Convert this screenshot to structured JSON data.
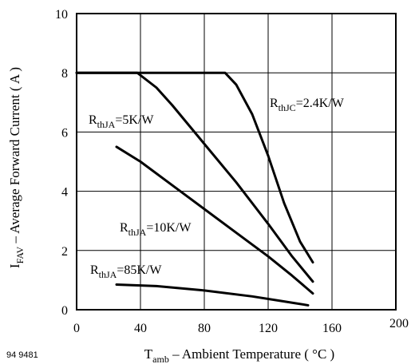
{
  "chart_data": {
    "type": "line",
    "figure_code": "94 9481",
    "xlabel_parts": [
      "T",
      "amb",
      " – Ambient Temperature ( °C )"
    ],
    "ylabel_parts": [
      "I",
      "FAV",
      " – Average Forward Current ( A )"
    ],
    "xlim": [
      0,
      200
    ],
    "ylim": [
      0,
      10
    ],
    "x_ticks": [
      "0",
      "40",
      "80",
      "120",
      "160",
      "200"
    ],
    "y_ticks": [
      "0",
      "2",
      "4",
      "6",
      "8",
      "10"
    ],
    "grid": true,
    "series": [
      {
        "label_parts": [
          "R",
          "thJC",
          "=2.4K/W"
        ],
        "points": [
          [
            0,
            8
          ],
          [
            93,
            8
          ],
          [
            100,
            7.6
          ],
          [
            110,
            6.6
          ],
          [
            120,
            5.2
          ],
          [
            130,
            3.6
          ],
          [
            140,
            2.3
          ],
          [
            148,
            1.6
          ]
        ]
      },
      {
        "label_parts": [
          "R",
          "thJA",
          "=5K/W"
        ],
        "points": [
          [
            0,
            8
          ],
          [
            38,
            8
          ],
          [
            50,
            7.5
          ],
          [
            60,
            6.9
          ],
          [
            80,
            5.6
          ],
          [
            100,
            4.3
          ],
          [
            120,
            2.9
          ],
          [
            135,
            1.8
          ],
          [
            148,
            0.95
          ]
        ]
      },
      {
        "label_parts": [
          "R",
          "thJA",
          "=10K/W"
        ],
        "points": [
          [
            25,
            5.5
          ],
          [
            40,
            5.0
          ],
          [
            60,
            4.2
          ],
          [
            80,
            3.4
          ],
          [
            100,
            2.6
          ],
          [
            120,
            1.8
          ],
          [
            135,
            1.15
          ],
          [
            148,
            0.55
          ]
        ]
      },
      {
        "label_parts": [
          "R",
          "thJA",
          "=85K/W"
        ],
        "points": [
          [
            25,
            0.85
          ],
          [
            50,
            0.8
          ],
          [
            80,
            0.65
          ],
          [
            110,
            0.45
          ],
          [
            130,
            0.28
          ],
          [
            145,
            0.15
          ]
        ]
      }
    ]
  }
}
